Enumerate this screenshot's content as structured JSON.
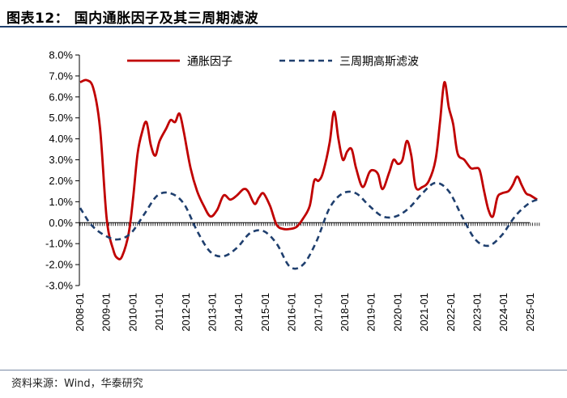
{
  "figure_title": "图表12：  国内通胀因子及其三周期滤波",
  "source_note": "资料来源：Wind，华泰研究",
  "chart_data": {
    "type": "line",
    "title": "",
    "xlabel": "",
    "ylabel": "",
    "ylim": [
      -3.0,
      8.0
    ],
    "yticks": [
      "-3.0%",
      "-2.0%",
      "-1.0%",
      "0.0%",
      "1.0%",
      "2.0%",
      "3.0%",
      "4.0%",
      "5.0%",
      "6.0%",
      "7.0%",
      "8.0%"
    ],
    "xticks": [
      "2008-01",
      "2009-01",
      "2010-01",
      "2011-01",
      "2012-01",
      "2013-01",
      "2014-01",
      "2015-01",
      "2016-01",
      "2017-01",
      "2018-01",
      "2019-01",
      "2020-01",
      "2021-01",
      "2022-01",
      "2023-01",
      "2024-01",
      "2025-01"
    ],
    "x_range": [
      "2008-01",
      "2025-04"
    ],
    "legend_position": "top",
    "grid": false,
    "series": [
      {
        "name": "通胀因子",
        "color": "#c00000",
        "style": "solid",
        "points": [
          [
            "2008-01",
            6.7
          ],
          [
            "2008-04",
            6.8
          ],
          [
            "2008-07",
            6.4
          ],
          [
            "2008-10",
            4.5
          ],
          [
            "2009-01",
            0.2
          ],
          [
            "2009-04",
            -1.3
          ],
          [
            "2009-06",
            -1.7
          ],
          [
            "2009-08",
            -1.6
          ],
          [
            "2009-11",
            -0.5
          ],
          [
            "2010-01",
            1.2
          ],
          [
            "2010-03",
            3.3
          ],
          [
            "2010-05",
            4.3
          ],
          [
            "2010-07",
            4.8
          ],
          [
            "2010-09",
            3.7
          ],
          [
            "2010-11",
            3.2
          ],
          [
            "2011-01",
            3.9
          ],
          [
            "2011-04",
            4.5
          ],
          [
            "2011-06",
            4.9
          ],
          [
            "2011-08",
            4.8
          ],
          [
            "2011-10",
            5.2
          ],
          [
            "2011-12",
            4.3
          ],
          [
            "2012-03",
            2.6
          ],
          [
            "2012-06",
            1.5
          ],
          [
            "2012-09",
            0.8
          ],
          [
            "2012-12",
            0.3
          ],
          [
            "2013-03",
            0.6
          ],
          [
            "2013-06",
            1.3
          ],
          [
            "2013-09",
            1.1
          ],
          [
            "2013-12",
            1.3
          ],
          [
            "2014-03",
            1.6
          ],
          [
            "2014-05",
            1.5
          ],
          [
            "2014-08",
            0.9
          ],
          [
            "2014-10",
            1.2
          ],
          [
            "2014-12",
            1.4
          ],
          [
            "2015-03",
            0.8
          ],
          [
            "2015-06",
            -0.1
          ],
          [
            "2015-09",
            -0.3
          ],
          [
            "2015-12",
            -0.3
          ],
          [
            "2016-03",
            -0.2
          ],
          [
            "2016-06",
            0.2
          ],
          [
            "2016-09",
            0.8
          ],
          [
            "2016-11",
            2.0
          ],
          [
            "2017-01",
            2.0
          ],
          [
            "2017-03",
            2.4
          ],
          [
            "2017-06",
            3.8
          ],
          [
            "2017-08",
            5.3
          ],
          [
            "2017-10",
            4.0
          ],
          [
            "2017-12",
            3.0
          ],
          [
            "2018-02",
            3.4
          ],
          [
            "2018-04",
            3.5
          ],
          [
            "2018-06",
            2.6
          ],
          [
            "2018-09",
            1.7
          ],
          [
            "2018-12",
            2.4
          ],
          [
            "2019-02",
            2.5
          ],
          [
            "2019-04",
            2.3
          ],
          [
            "2019-06",
            1.6
          ],
          [
            "2019-09",
            2.4
          ],
          [
            "2019-11",
            3.0
          ],
          [
            "2020-01",
            2.8
          ],
          [
            "2020-03",
            3.0
          ],
          [
            "2020-05",
            3.9
          ],
          [
            "2020-07",
            3.2
          ],
          [
            "2020-09",
            1.7
          ],
          [
            "2020-12",
            1.7
          ],
          [
            "2021-03",
            2.0
          ],
          [
            "2021-06",
            3.0
          ],
          [
            "2021-08",
            4.8
          ],
          [
            "2021-10",
            6.7
          ],
          [
            "2021-12",
            5.5
          ],
          [
            "2022-02",
            4.7
          ],
          [
            "2022-04",
            3.3
          ],
          [
            "2022-07",
            3.0
          ],
          [
            "2022-10",
            2.6
          ],
          [
            "2022-12",
            2.6
          ],
          [
            "2023-02",
            2.5
          ],
          [
            "2023-04",
            1.5
          ],
          [
            "2023-06",
            0.6
          ],
          [
            "2023-08",
            0.3
          ],
          [
            "2023-10",
            1.2
          ],
          [
            "2023-12",
            1.4
          ],
          [
            "2024-03",
            1.5
          ],
          [
            "2024-05",
            1.8
          ],
          [
            "2024-07",
            2.2
          ],
          [
            "2024-09",
            1.8
          ],
          [
            "2024-11",
            1.4
          ],
          [
            "2025-01",
            1.3
          ],
          [
            "2025-04",
            1.1
          ]
        ]
      },
      {
        "name": "三周期高斯滤波",
        "color": "#1f3f6e",
        "style": "dashed",
        "points": [
          [
            "2008-01",
            0.7
          ],
          [
            "2008-06",
            -0.1
          ],
          [
            "2008-12",
            -0.6
          ],
          [
            "2009-06",
            -0.8
          ],
          [
            "2009-12",
            -0.5
          ],
          [
            "2010-06",
            0.4
          ],
          [
            "2010-12",
            1.3
          ],
          [
            "2011-06",
            1.4
          ],
          [
            "2011-12",
            0.9
          ],
          [
            "2012-06",
            -0.4
          ],
          [
            "2012-12",
            -1.4
          ],
          [
            "2013-06",
            -1.6
          ],
          [
            "2013-12",
            -1.2
          ],
          [
            "2014-06",
            -0.5
          ],
          [
            "2014-12",
            -0.4
          ],
          [
            "2015-06",
            -1.0
          ],
          [
            "2015-12",
            -2.1
          ],
          [
            "2016-06",
            -2.0
          ],
          [
            "2016-12",
            -0.9
          ],
          [
            "2017-06",
            0.7
          ],
          [
            "2017-12",
            1.4
          ],
          [
            "2018-06",
            1.4
          ],
          [
            "2018-12",
            0.8
          ],
          [
            "2019-06",
            0.3
          ],
          [
            "2019-12",
            0.3
          ],
          [
            "2020-06",
            0.7
          ],
          [
            "2020-12",
            1.4
          ],
          [
            "2021-06",
            1.9
          ],
          [
            "2021-12",
            1.5
          ],
          [
            "2022-06",
            0.3
          ],
          [
            "2022-12",
            -0.8
          ],
          [
            "2023-06",
            -1.1
          ],
          [
            "2023-12",
            -0.6
          ],
          [
            "2024-06",
            0.3
          ],
          [
            "2024-12",
            0.9
          ],
          [
            "2025-04",
            1.1
          ]
        ]
      }
    ]
  }
}
